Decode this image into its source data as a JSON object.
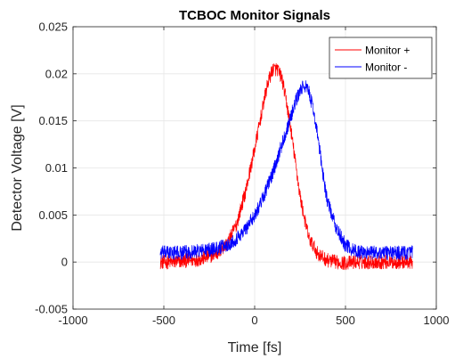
{
  "chart_data": {
    "type": "line",
    "title": "TCBOC Monitor Signals",
    "xlabel": "Time [fs]",
    "ylabel": "Detector Voltage [V]",
    "xlim": [
      -1000,
      1000
    ],
    "ylim": [
      -0.005,
      0.025
    ],
    "xticks": [
      -1000,
      -500,
      0,
      500,
      1000
    ],
    "xtick_labels": [
      "-1000",
      "-500",
      "0",
      "500",
      "1000"
    ],
    "yticks": [
      -0.005,
      0,
      0.005,
      0.01,
      0.015,
      0.02,
      0.025
    ],
    "ytick_labels": [
      "-0.005",
      "0",
      "0.005",
      "0.01",
      "0.015",
      "0.02",
      "0.025"
    ],
    "grid": true,
    "legend_position": "top-right",
    "series": [
      {
        "name": "Monitor +",
        "color": "#ff0000",
        "x": [
          -520,
          -450,
          -400,
          -350,
          -300,
          -250,
          -200,
          -150,
          -100,
          -50,
          0,
          25,
          50,
          75,
          100,
          125,
          150,
          175,
          200,
          225,
          250,
          275,
          300,
          350,
          400,
          450,
          500,
          550,
          600,
          650,
          700,
          750,
          800,
          850,
          870
        ],
        "y": [
          0.0,
          0.0,
          0.0001,
          0.0002,
          0.0003,
          0.0006,
          0.001,
          0.002,
          0.004,
          0.0075,
          0.012,
          0.0145,
          0.017,
          0.0192,
          0.0205,
          0.0205,
          0.0195,
          0.017,
          0.014,
          0.0105,
          0.007,
          0.0045,
          0.0025,
          0.0008,
          0.0002,
          0.0,
          -0.0001,
          0.0,
          0.0,
          0.0,
          0.0,
          0.0,
          0.0,
          0.0,
          0.0
        ]
      },
      {
        "name": "Monitor -",
        "color": "#0000ff",
        "x": [
          -520,
          -450,
          -400,
          -350,
          -300,
          -250,
          -200,
          -150,
          -100,
          -50,
          0,
          50,
          100,
          150,
          200,
          225,
          250,
          275,
          300,
          325,
          350,
          375,
          400,
          450,
          500,
          550,
          600,
          650,
          700,
          750,
          800,
          850,
          870
        ],
        "y": [
          0.001,
          0.001,
          0.001,
          0.0011,
          0.0012,
          0.0013,
          0.0015,
          0.0018,
          0.0025,
          0.0035,
          0.005,
          0.007,
          0.0095,
          0.0125,
          0.0155,
          0.017,
          0.0182,
          0.0188,
          0.018,
          0.016,
          0.013,
          0.0095,
          0.0065,
          0.0035,
          0.0018,
          0.0012,
          0.001,
          0.001,
          0.001,
          0.001,
          0.001,
          0.001,
          0.001
        ]
      }
    ]
  }
}
